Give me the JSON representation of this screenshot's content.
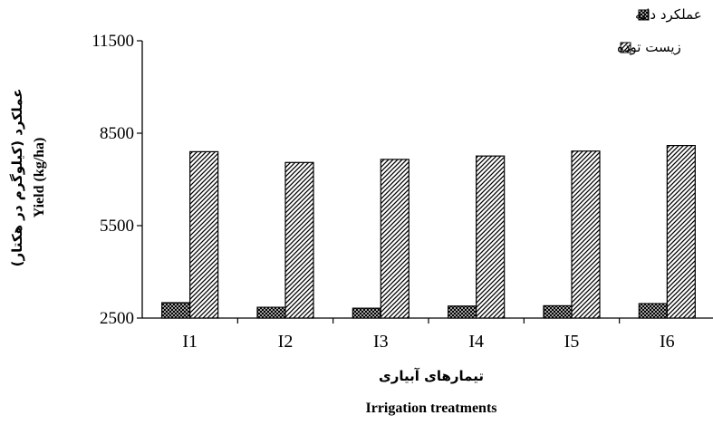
{
  "chart_data": {
    "type": "bar",
    "categories": [
      "I1",
      "I2",
      "I3",
      "I4",
      "I5",
      "I6"
    ],
    "series": [
      {
        "name": "عملکرد دانه",
        "values": [
          3000,
          2850,
          2820,
          2890,
          2900,
          2970
        ],
        "pattern": "crosshatch",
        "color": "#000000"
      },
      {
        "name": "زیست توده",
        "values": [
          7900,
          7550,
          7650,
          7760,
          7920,
          8100
        ],
        "pattern": "diagonal",
        "color": "#000000"
      }
    ],
    "ylim": [
      2500,
      11500
    ],
    "yticks": [
      "2500",
      "5500",
      "8500",
      "11500"
    ],
    "ytick_values": [
      2500,
      5500,
      8500,
      11500
    ],
    "ylabel_en": "Yield (kg/ha)",
    "ylabel_fa": "عملکرد (کیلوگرم در هکتار)",
    "xlabel_fa": "تیمارهای آبیاری",
    "xlabel_en": "Irrigation treatments",
    "legend_position": "top-right",
    "grid": false
  }
}
